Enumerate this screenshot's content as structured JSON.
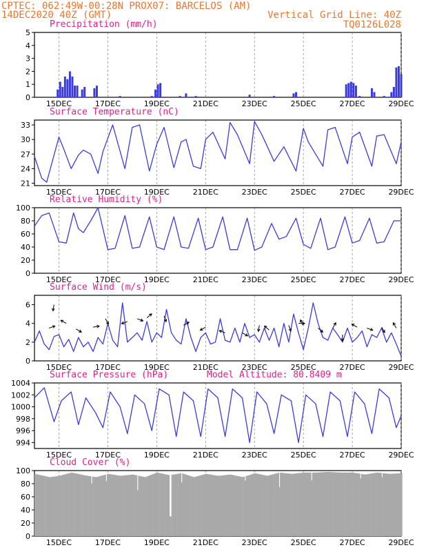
{
  "header": {
    "line1": "CPTEC:   062:49W-00:28N   PROX07: BARCELOS (AM)",
    "line2_left": "14DEC2020 40Z (GMT)",
    "line2_right": "Vertical Grid Line: 40Z",
    "line3_right": "TQ0126L028"
  },
  "colors": {
    "header": "#e8772e",
    "title": "#e0208a",
    "series": "#3b3bdc",
    "cloud": "#a9a9a9"
  },
  "x_axis": {
    "tick_labels": [
      "15DEC",
      "17DEC",
      "19DEC",
      "21DEC",
      "23DEC",
      "25DEC",
      "27DEC",
      "29DEC"
    ]
  },
  "chart_data": [
    {
      "type": "bar",
      "title": "Precipitation (mm/h)",
      "ylim": [
        0,
        5
      ],
      "yticks": [
        "0",
        "1",
        "2",
        "3",
        "4",
        "5"
      ],
      "x_range_days": [
        14.0,
        29.0
      ],
      "points": [
        [
          14.95,
          0.6
        ],
        [
          15.05,
          1.2
        ],
        [
          15.15,
          0.8
        ],
        [
          15.25,
          1.6
        ],
        [
          15.35,
          1.4
        ],
        [
          15.45,
          2.0
        ],
        [
          15.55,
          1.6
        ],
        [
          15.65,
          0.9
        ],
        [
          15.75,
          0.9
        ],
        [
          15.95,
          0.6
        ],
        [
          16.05,
          0.8
        ],
        [
          16.45,
          0.7
        ],
        [
          16.55,
          0.9
        ],
        [
          17.5,
          0.1
        ],
        [
          18.8,
          0.1
        ],
        [
          18.95,
          0.6
        ],
        [
          19.05,
          1.0
        ],
        [
          19.15,
          1.1
        ],
        [
          19.95,
          0.1
        ],
        [
          20.2,
          0.3
        ],
        [
          20.6,
          0.1
        ],
        [
          22.8,
          0.2
        ],
        [
          23.8,
          0.1
        ],
        [
          24.6,
          0.3
        ],
        [
          24.7,
          0.4
        ],
        [
          26.75,
          1.0
        ],
        [
          26.85,
          1.1
        ],
        [
          26.95,
          1.2
        ],
        [
          27.05,
          1.1
        ],
        [
          27.15,
          0.9
        ],
        [
          27.3,
          0.1
        ],
        [
          27.8,
          0.7
        ],
        [
          27.9,
          0.4
        ],
        [
          28.3,
          0.1
        ],
        [
          28.6,
          0.4
        ],
        [
          28.7,
          0.8
        ],
        [
          28.8,
          2.3
        ],
        [
          28.9,
          2.4
        ],
        [
          29.0,
          1.8
        ]
      ]
    },
    {
      "type": "line",
      "title": "Surface Temperature (nC)",
      "ylim": [
        20.5,
        34
      ],
      "yticks": [
        "21",
        "24",
        "27",
        "30",
        "33"
      ],
      "x": [
        14.0,
        14.3,
        14.5,
        15.0,
        15.2,
        15.5,
        15.8,
        16.0,
        16.3,
        16.6,
        16.8,
        17.2,
        17.7,
        18.0,
        18.3,
        18.7,
        19.0,
        19.3,
        19.7,
        20.0,
        20.2,
        20.5,
        20.8,
        21.0,
        21.3,
        21.8,
        22.0,
        22.3,
        22.8,
        23.0,
        23.3,
        23.8,
        24.0,
        24.2,
        24.7,
        25.0,
        25.2,
        25.8,
        26.0,
        26.3,
        26.8,
        27.0,
        27.3,
        27.8,
        28.0,
        28.3,
        28.8,
        29.0
      ],
      "y": [
        26.5,
        22.0,
        21.2,
        30.5,
        28.0,
        24.0,
        26.8,
        27.8,
        27.0,
        23.0,
        27.5,
        33.0,
        24.0,
        32.5,
        33.0,
        23.5,
        29.0,
        32.5,
        24.2,
        29.5,
        30.0,
        24.5,
        24.0,
        30.0,
        31.5,
        26.0,
        33.5,
        31.0,
        25.0,
        33.7,
        31.0,
        25.5,
        27.0,
        28.5,
        23.5,
        32.3,
        29.5,
        24.5,
        32.0,
        32.5,
        25.0,
        30.5,
        31.5,
        24.5,
        30.7,
        31.0,
        25.0,
        29.5
      ]
    },
    {
      "type": "line",
      "title": "Relative Humidity (%)",
      "ylim": [
        0,
        100
      ],
      "yticks": [
        "0",
        "20",
        "40",
        "60",
        "80",
        "100"
      ],
      "x": [
        14.0,
        14.3,
        14.6,
        15.0,
        15.3,
        15.6,
        15.8,
        16.0,
        16.3,
        16.6,
        17.0,
        17.3,
        17.7,
        18.0,
        18.3,
        18.7,
        19.0,
        19.3,
        19.7,
        20.0,
        20.3,
        20.7,
        21.0,
        21.3,
        21.7,
        22.0,
        22.3,
        22.7,
        23.0,
        23.3,
        23.7,
        24.0,
        24.3,
        24.7,
        25.0,
        25.3,
        25.7,
        26.0,
        26.3,
        26.7,
        27.0,
        27.3,
        27.7,
        28.0,
        28.3,
        28.7,
        29.0
      ],
      "y": [
        72,
        88,
        92,
        48,
        46,
        92,
        68,
        62,
        80,
        100,
        36,
        38,
        88,
        38,
        40,
        86,
        40,
        36,
        86,
        40,
        38,
        84,
        36,
        40,
        86,
        36,
        36,
        84,
        35,
        40,
        76,
        52,
        56,
        84,
        44,
        38,
        84,
        36,
        40,
        86,
        46,
        50,
        84,
        46,
        48,
        80,
        80
      ]
    },
    {
      "type": "line",
      "title": "Surface Wind (m/s)",
      "ylim": [
        0,
        7
      ],
      "yticks": [
        "0",
        "2",
        "4",
        "6"
      ],
      "x": [
        14.0,
        14.2,
        14.4,
        14.6,
        14.8,
        15.0,
        15.2,
        15.4,
        15.6,
        15.8,
        16.0,
        16.2,
        16.4,
        16.6,
        16.8,
        17.0,
        17.2,
        17.4,
        17.6,
        17.8,
        18.0,
        18.2,
        18.4,
        18.6,
        18.8,
        19.0,
        19.2,
        19.4,
        19.6,
        19.8,
        20.0,
        20.2,
        20.4,
        20.6,
        20.8,
        21.0,
        21.2,
        21.4,
        21.6,
        21.8,
        22.0,
        22.2,
        22.4,
        22.6,
        22.8,
        23.0,
        23.2,
        23.4,
        23.6,
        23.8,
        24.0,
        24.2,
        24.4,
        24.6,
        24.8,
        25.0,
        25.2,
        25.4,
        25.6,
        25.8,
        26.0,
        26.2,
        26.4,
        26.6,
        26.8,
        27.0,
        27.2,
        27.4,
        27.6,
        27.8,
        28.0,
        28.2,
        28.4,
        28.6,
        28.8,
        29.0
      ],
      "y": [
        2.0,
        3.2,
        1.8,
        1.2,
        2.6,
        2.8,
        1.5,
        2.3,
        1.0,
        2.5,
        1.5,
        2.0,
        1.0,
        2.5,
        1.8,
        4.0,
        2.2,
        1.5,
        6.2,
        2.0,
        2.5,
        3.0,
        2.2,
        4.2,
        2.0,
        3.0,
        2.5,
        5.5,
        3.0,
        2.2,
        1.8,
        4.5,
        2.5,
        1.0,
        2.5,
        3.0,
        1.8,
        2.0,
        4.5,
        2.2,
        2.0,
        3.5,
        2.0,
        4.0,
        2.5,
        2.8,
        2.0,
        3.5,
        2.2,
        3.5,
        1.5,
        4.0,
        2.0,
        5.0,
        3.0,
        1.2,
        3.5,
        6.2,
        4.0,
        2.5,
        2.2,
        3.5,
        2.8,
        2.0,
        3.5,
        2.0,
        2.5,
        3.2,
        1.5,
        2.8,
        2.5,
        3.5,
        2.0,
        3.0,
        1.8,
        0.5
      ]
    },
    {
      "type": "line",
      "title": "Surface Pressure (hPa)",
      "annotation": "Model Altitude: 80.8409 m",
      "ylim": [
        993,
        1004
      ],
      "yticks": [
        "994",
        "996",
        "998",
        "1000",
        "1002",
        "1004"
      ],
      "x": [
        14.0,
        14.4,
        14.8,
        15.1,
        15.5,
        15.8,
        16.1,
        16.5,
        16.8,
        17.1,
        17.5,
        17.8,
        18.1,
        18.5,
        18.8,
        19.1,
        19.5,
        19.8,
        20.1,
        20.5,
        20.8,
        21.1,
        21.5,
        21.8,
        22.1,
        22.5,
        22.8,
        23.1,
        23.5,
        23.8,
        24.1,
        24.5,
        24.8,
        25.1,
        25.5,
        25.8,
        26.1,
        26.5,
        26.8,
        27.1,
        27.5,
        27.8,
        28.1,
        28.5,
        28.8,
        29.0
      ],
      "y": [
        1001.5,
        1003.2,
        997.5,
        1001.0,
        1002.5,
        997.0,
        1001.5,
        999.0,
        996.5,
        1002.5,
        1000.0,
        995.5,
        1002.0,
        1000.5,
        996.0,
        1003.0,
        1002.0,
        995.0,
        1002.5,
        1001.0,
        995.0,
        1003.0,
        1001.5,
        995.0,
        1003.0,
        1001.5,
        994.0,
        1002.5,
        1000.5,
        995.5,
        1002.0,
        1001.0,
        994.0,
        1002.0,
        1000.5,
        995.0,
        1002.5,
        1001.0,
        995.0,
        1002.5,
        1000.5,
        995.5,
        1003.0,
        1001.5,
        996.5,
        998.5
      ]
    },
    {
      "type": "bar",
      "title": "Cloud Cover (%)",
      "ylim": [
        0,
        100
      ],
      "yticks": [
        "0",
        "20",
        "40",
        "60",
        "80",
        "100"
      ],
      "x_range_days": [
        14.0,
        29.0
      ],
      "profile": [
        [
          14.0,
          95
        ],
        [
          14.6,
          90
        ],
        [
          15.0,
          92
        ],
        [
          15.5,
          97
        ],
        [
          16.0,
          93
        ],
        [
          16.5,
          90
        ],
        [
          17.0,
          95
        ],
        [
          17.5,
          92
        ],
        [
          18.0,
          94
        ],
        [
          18.5,
          90
        ],
        [
          19.0,
          97
        ],
        [
          19.5,
          93
        ],
        [
          20.0,
          96
        ],
        [
          20.5,
          90
        ],
        [
          21.0,
          95
        ],
        [
          21.5,
          92
        ],
        [
          22.0,
          94
        ],
        [
          22.5,
          90
        ],
        [
          23.0,
          96
        ],
        [
          23.5,
          92
        ],
        [
          24.0,
          97
        ],
        [
          24.5,
          95
        ],
        [
          25.0,
          97
        ],
        [
          25.5,
          97
        ],
        [
          26.0,
          98
        ],
        [
          26.5,
          97
        ],
        [
          27.0,
          97
        ],
        [
          27.5,
          94
        ],
        [
          28.0,
          97
        ],
        [
          28.5,
          95
        ],
        [
          29.0,
          96
        ]
      ],
      "dropouts": [
        [
          16.3,
          80
        ],
        [
          16.9,
          84
        ],
        [
          18.2,
          70
        ],
        [
          19.5,
          30
        ],
        [
          19.55,
          30
        ],
        [
          20.0,
          82
        ],
        [
          22.6,
          85
        ],
        [
          24.0,
          75
        ],
        [
          25.3,
          85
        ],
        [
          27.3,
          88
        ],
        [
          28.2,
          90
        ]
      ]
    }
  ]
}
